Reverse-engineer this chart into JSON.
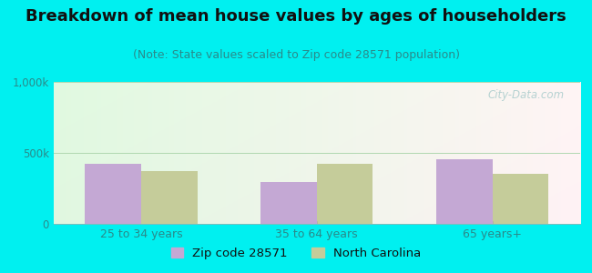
{
  "title": "Breakdown of mean house values by ages of householders",
  "subtitle": "(Note: State values scaled to Zip code 28571 population)",
  "categories": [
    "25 to 34 years",
    "35 to 64 years",
    "65 years+"
  ],
  "zip_values": [
    420000,
    295000,
    455000
  ],
  "nc_values": [
    370000,
    420000,
    350000
  ],
  "ylim": [
    0,
    1000000
  ],
  "ytick_labels": [
    "0",
    "500k",
    "1,000k"
  ],
  "ytick_vals": [
    0,
    500000,
    1000000
  ],
  "zip_color": "#c4a8d4",
  "nc_color": "#c5cc9a",
  "background_outer": "#00f0f0",
  "legend_zip": "Zip code 28571",
  "legend_nc": "North Carolina",
  "watermark": "City-Data.com",
  "title_fontsize": 13,
  "subtitle_fontsize": 9,
  "tick_fontsize": 8.5,
  "xtick_fontsize": 9,
  "bar_width": 0.32,
  "title_color": "#111111",
  "subtitle_color": "#2a8a8a",
  "tick_color": "#2a8a8a",
  "xtick_color": "#2a8a8a",
  "legend_fontsize": 9.5
}
